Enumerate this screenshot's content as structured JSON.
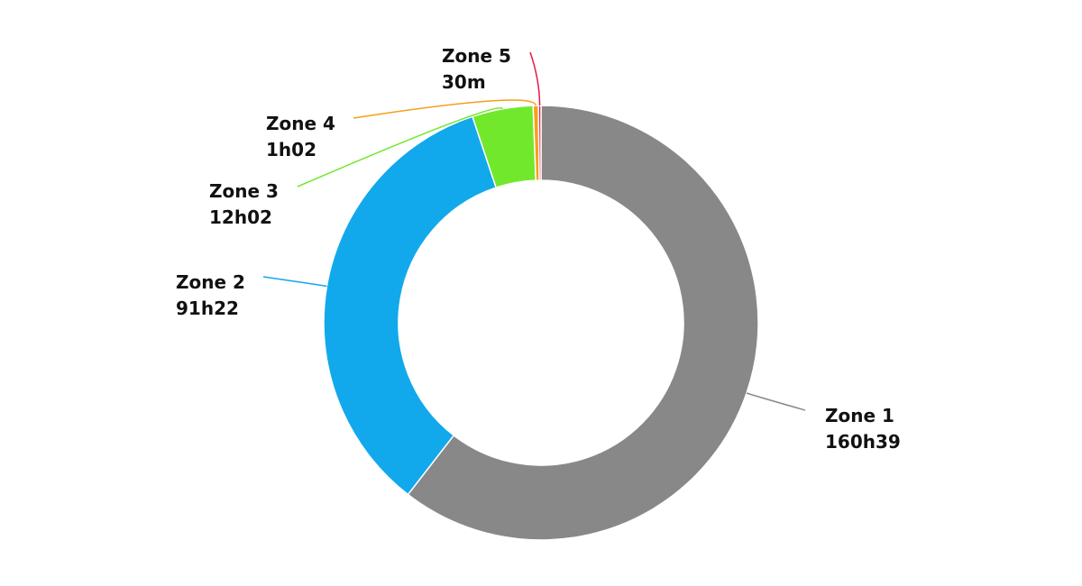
{
  "chart_data": {
    "type": "donut",
    "categories": [
      "Zone 1",
      "Zone 2",
      "Zone 3",
      "Zone 4",
      "Zone 5"
    ],
    "values": [
      9639,
      5482,
      722,
      62,
      30
    ],
    "value_labels": [
      "160h39",
      "91h22",
      "12h02",
      "1h02",
      "30m"
    ],
    "colors": [
      "#888888",
      "#12a8ec",
      "#72e82c",
      "#f5a01a",
      "#e8174a"
    ]
  }
}
